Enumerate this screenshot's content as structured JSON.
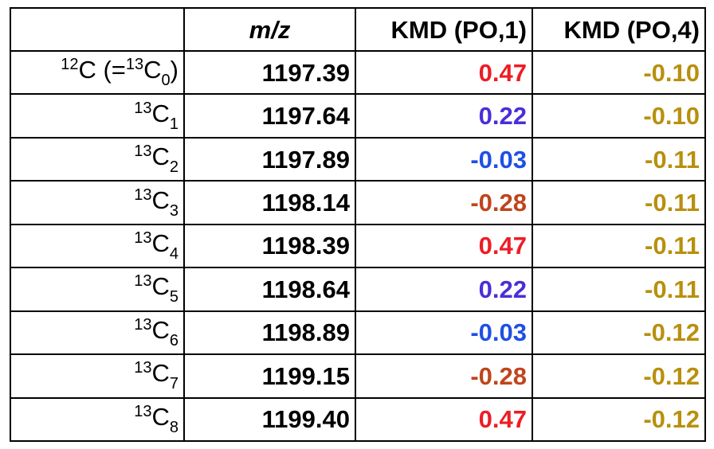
{
  "colors": {
    "red": "#ee1c24",
    "purple": "#4b2ed8",
    "blue": "#1f4fe6",
    "brown": "#c0441c",
    "gold": "#b8900e"
  },
  "header": {
    "col0": "",
    "col1": "m/z",
    "col2": "KMD (PO,1)",
    "col3": "KMD (PO,4)"
  },
  "first_row_label": {
    "mass_pre": "12",
    "element": "C",
    "paren_open": " (=",
    "iso_mass": "13",
    "iso_element": "C",
    "iso_count": "0",
    "paren_close": ")"
  },
  "rows": [
    {
      "mass": "13",
      "element": "C",
      "count": "1",
      "mz": "1197.64",
      "kmd1": "0.22",
      "kmd1_color": "#4b2ed8",
      "kmd4": "-0.10"
    },
    {
      "mass": "13",
      "element": "C",
      "count": "2",
      "mz": "1197.89",
      "kmd1": "-0.03",
      "kmd1_color": "#1f4fe6",
      "kmd4": "-0.11"
    },
    {
      "mass": "13",
      "element": "C",
      "count": "3",
      "mz": "1198.14",
      "kmd1": "-0.28",
      "kmd1_color": "#c0441c",
      "kmd4": "-0.11"
    },
    {
      "mass": "13",
      "element": "C",
      "count": "4",
      "mz": "1198.39",
      "kmd1": "0.47",
      "kmd1_color": "#ee1c24",
      "kmd4": "-0.11"
    },
    {
      "mass": "13",
      "element": "C",
      "count": "5",
      "mz": "1198.64",
      "kmd1": "0.22",
      "kmd1_color": "#4b2ed8",
      "kmd4": "-0.11"
    },
    {
      "mass": "13",
      "element": "C",
      "count": "6",
      "mz": "1198.89",
      "kmd1": "-0.03",
      "kmd1_color": "#1f4fe6",
      "kmd4": "-0.12"
    },
    {
      "mass": "13",
      "element": "C",
      "count": "7",
      "mz": "1199.15",
      "kmd1": "-0.28",
      "kmd1_color": "#c0441c",
      "kmd4": "-0.12"
    },
    {
      "mass": "13",
      "element": "C",
      "count": "8",
      "mz": "1199.40",
      "kmd1": "0.47",
      "kmd1_color": "#ee1c24",
      "kmd4": "-0.12"
    }
  ],
  "first_row": {
    "mz": "1197.39",
    "kmd1": "0.47",
    "kmd1_color": "#ee1c24",
    "kmd4": "-0.10"
  }
}
